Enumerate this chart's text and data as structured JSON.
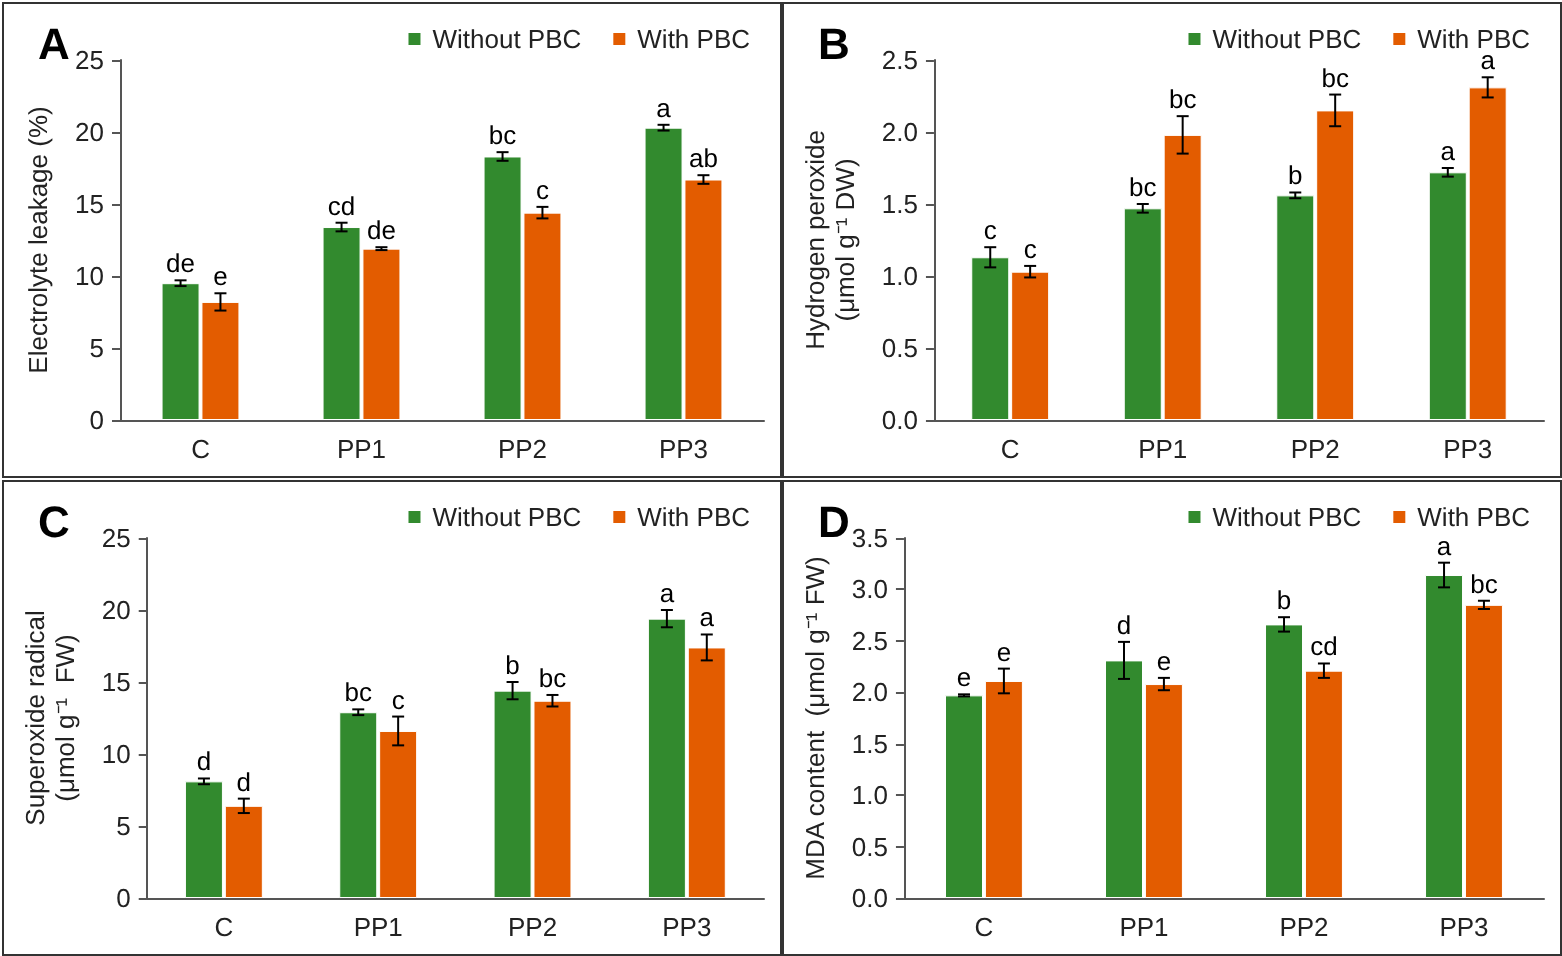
{
  "chart_data": [
    {
      "type": "bar",
      "title": "A",
      "ylabel": "Electrolyte leakage (%)",
      "categories": [
        "C",
        "PP1",
        "PP2",
        "PP3"
      ],
      "ylim": [
        0,
        25
      ],
      "yticks": [
        0,
        5,
        10,
        15,
        20,
        25
      ],
      "legend": "top right",
      "series": [
        {
          "name": "Without PBC",
          "color": "#328a2e",
          "values": [
            9.5,
            13.4,
            18.3,
            20.3
          ],
          "errors": [
            0.2,
            0.3,
            0.3,
            0.2
          ],
          "value_labels": [
            "de",
            "cd",
            "bc",
            "a"
          ]
        },
        {
          "name": "With PBC",
          "color": "#e35c00",
          "values": [
            8.2,
            11.9,
            14.4,
            16.7
          ],
          "errors": [
            0.6,
            0.1,
            0.4,
            0.3
          ],
          "value_labels": [
            "e",
            "de",
            "c",
            "ab"
          ]
        }
      ]
    },
    {
      "type": "bar",
      "title": "B",
      "ylabel": "Hydrogen peroxide\n(μmol g⁻¹ DW)",
      "categories": [
        "C",
        "PP1",
        "PP2",
        "PP3"
      ],
      "ylim": [
        0,
        2.5
      ],
      "yticks": [
        {
          "value": 0,
          "label": "0.0"
        },
        0.5,
        {
          "value": 1,
          "label": "1.0"
        },
        1.5,
        {
          "value": 2,
          "label": "2.0"
        },
        2.5
      ],
      "legend": "top right",
      "series": [
        {
          "name": "Without PBC",
          "color": "#328a2e",
          "values": [
            1.13,
            1.47,
            1.56,
            1.72
          ],
          "errors": [
            0.07,
            0.03,
            0.02,
            0.03
          ],
          "value_labels": [
            "c",
            "bc",
            "b",
            "a"
          ]
        },
        {
          "name": "With PBC",
          "color": "#e35c00",
          "values": [
            1.03,
            1.98,
            2.15,
            2.31
          ],
          "errors": [
            0.04,
            0.13,
            0.11,
            0.07
          ],
          "value_labels": [
            "c",
            "bc",
            "bc",
            "a"
          ]
        }
      ]
    },
    {
      "type": "bar",
      "title": "C",
      "ylabel": "Superoxide radical\n(μmol g⁻¹  FW)",
      "categories": [
        "C",
        "PP1",
        "PP2",
        "PP3"
      ],
      "ylim": [
        0,
        25
      ],
      "yticks": [
        0,
        5,
        10,
        15,
        20,
        25
      ],
      "legend": "top right",
      "series": [
        {
          "name": "Without PBC",
          "color": "#328a2e",
          "values": [
            8.1,
            12.9,
            14.4,
            19.4
          ],
          "errors": [
            0.2,
            0.2,
            0.6,
            0.6
          ],
          "value_labels": [
            "d",
            "bc",
            "b",
            "a"
          ]
        },
        {
          "name": "With PBC",
          "color": "#e35c00",
          "values": [
            6.4,
            11.6,
            13.7,
            17.4
          ],
          "errors": [
            0.5,
            1.0,
            0.4,
            0.9
          ],
          "value_labels": [
            "d",
            "c",
            "bc",
            "a"
          ]
        }
      ]
    },
    {
      "type": "bar",
      "title": "D",
      "ylabel": "MDA content  (μmol g⁻¹ FW)",
      "categories": [
        "C",
        "PP1",
        "PP2",
        "PP3"
      ],
      "ylim": [
        0,
        3.5
      ],
      "yticks": [
        {
          "value": 0,
          "label": "0.0"
        },
        0.5,
        {
          "value": 1,
          "label": "1.0"
        },
        1.5,
        {
          "value": 2,
          "label": "2.0"
        },
        2.5,
        {
          "value": 3,
          "label": "3.0"
        },
        3.5
      ],
      "legend": "top right",
      "series": [
        {
          "name": "Without PBC",
          "color": "#328a2e",
          "values": [
            1.97,
            2.31,
            2.66,
            3.14
          ],
          "errors": [
            0.01,
            0.18,
            0.07,
            0.12
          ],
          "value_labels": [
            "e",
            "d",
            "b",
            "a"
          ]
        },
        {
          "name": "With PBC",
          "color": "#e35c00",
          "values": [
            2.11,
            2.08,
            2.21,
            2.85
          ],
          "errors": [
            0.12,
            0.06,
            0.07,
            0.04
          ],
          "value_labels": [
            "e",
            "e",
            "cd",
            "bc"
          ]
        }
      ]
    }
  ]
}
